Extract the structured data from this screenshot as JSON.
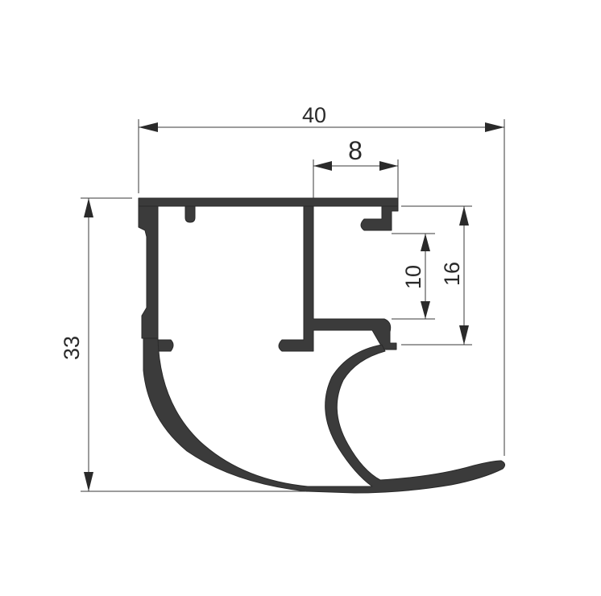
{
  "dimensions": {
    "overall_width": "40",
    "slot_width": "8",
    "overall_height": "33",
    "inner_height": "10",
    "outer_height": "16"
  },
  "colors": {
    "profile": "#3b3b3b",
    "lines": "#3a3a3a",
    "background": "#ffffff"
  }
}
